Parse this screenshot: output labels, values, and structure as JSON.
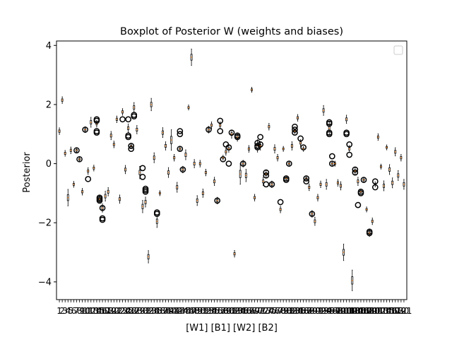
{
  "chart_data": {
    "type": "box",
    "title": "Boxplot of Posterior W (weights and biases)",
    "xlabel": "[W1] [B1] [W2] [B2]",
    "ylabel": "Posterior",
    "ylim": [
      -4.6,
      4.15
    ],
    "yticks": [
      -4,
      -2,
      0,
      2,
      4
    ],
    "x_tick_labels": "1 through 121 (one tick per box; labels overlap)",
    "legend": {
      "placement": "top-right",
      "entries": []
    },
    "grid": false,
    "box_count": 121,
    "colors": {
      "box": "#000000",
      "median": "#ff7f0e",
      "flier": "#000000",
      "background": "#ffffff"
    },
    "boxes": [
      {
        "i": 1,
        "median": 1.1,
        "spread": 0.08
      },
      {
        "i": 2,
        "median": 2.15,
        "spread": 0.08
      },
      {
        "i": 3,
        "median": 0.35,
        "spread": 0.07
      },
      {
        "i": 4,
        "median": -1.15,
        "spread": 0.2
      },
      {
        "i": 5,
        "median": 0.45,
        "spread": 0.08
      },
      {
        "i": 6,
        "median": -0.7,
        "spread": 0.07
      },
      {
        "i": 7,
        "median": 0.45,
        "spread": 0.06,
        "outliers": [
          0.45
        ]
      },
      {
        "i": 8,
        "median": 0.15,
        "spread": 0.06,
        "outliers": [
          0.15
        ]
      },
      {
        "i": 9,
        "median": -0.95,
        "spread": 0.08
      },
      {
        "i": 10,
        "median": 1.15,
        "spread": 0.07,
        "outliers": [
          1.15
        ]
      },
      {
        "i": 11,
        "median": -0.25,
        "spread": 0.08,
        "outliers": [
          -0.52
        ]
      },
      {
        "i": 12,
        "median": 1.4,
        "spread": 0.12
      },
      {
        "i": 13,
        "median": -0.15,
        "spread": 0.07
      },
      {
        "i": 14,
        "median": 1.35,
        "spread": 0.08,
        "outliers": [
          1.5,
          1.45,
          1.1,
          1.05
        ]
      },
      {
        "i": 15,
        "median": -1.2,
        "spread": 0.08,
        "outliers": [
          -1.15,
          -1.2,
          -1.25
        ]
      },
      {
        "i": 16,
        "median": -1.5,
        "spread": 0.1,
        "outliers": [
          -1.85,
          -1.9,
          -1.5
        ]
      },
      {
        "i": 17,
        "median": -1.1,
        "spread": 0.12
      },
      {
        "i": 18,
        "median": -0.95,
        "spread": 0.1
      },
      {
        "i": 19,
        "median": 0.95,
        "spread": 0.1
      },
      {
        "i": 20,
        "median": 0.65,
        "spread": 0.08
      },
      {
        "i": 21,
        "median": 1.5,
        "spread": 0.08
      },
      {
        "i": 22,
        "median": -1.2,
        "spread": 0.1
      },
      {
        "i": 23,
        "median": 1.75,
        "spread": 0.08,
        "outliers": [
          1.5
        ]
      },
      {
        "i": 24,
        "median": -0.2,
        "spread": 0.1
      },
      {
        "i": 25,
        "median": 1.2,
        "spread": 0.1,
        "outliers": [
          1.5,
          0.95,
          0.9
        ]
      },
      {
        "i": 26,
        "median": 0.6,
        "spread": 0.06,
        "outliers": [
          0.6,
          0.5
        ]
      },
      {
        "i": 27,
        "median": 1.9,
        "spread": 0.12,
        "outliers": [
          1.6,
          1.65
        ]
      },
      {
        "i": 28,
        "median": 1.15,
        "spread": 0.1
      },
      {
        "i": 29,
        "median": -0.3,
        "spread": 0.15
      },
      {
        "i": 30,
        "median": -1.45,
        "spread": 0.15,
        "outliers": [
          -0.15,
          -0.45
        ]
      },
      {
        "i": 31,
        "median": -1.3,
        "spread": 0.12,
        "outliers": [
          -0.85,
          -0.9,
          -0.95
        ]
      },
      {
        "i": 32,
        "median": -3.15,
        "spread": 0.15
      },
      {
        "i": 33,
        "median": 2.0,
        "spread": 0.15
      },
      {
        "i": 34,
        "median": 0.2,
        "spread": 0.12
      },
      {
        "i": 35,
        "median": -1.95,
        "spread": 0.15,
        "outliers": [
          -1.65,
          -1.7
        ]
      },
      {
        "i": 36,
        "median": -1.0,
        "spread": 0.06
      },
      {
        "i": 37,
        "median": 1.05,
        "spread": 0.12
      },
      {
        "i": 38,
        "median": 0.6,
        "spread": 0.1
      },
      {
        "i": 39,
        "median": -0.3,
        "spread": 0.12
      },
      {
        "i": 40,
        "median": 0.8,
        "spread": 0.25
      },
      {
        "i": 41,
        "median": 0.2,
        "spread": 0.08
      },
      {
        "i": 42,
        "median": -0.8,
        "spread": 0.12
      },
      {
        "i": 43,
        "median": 0.5,
        "spread": 0.06,
        "outliers": [
          1.1,
          1.0,
          0.5
        ]
      },
      {
        "i": 44,
        "median": -0.2,
        "spread": 0.08,
        "outliers": [
          -0.2
        ]
      },
      {
        "i": 45,
        "median": 0.3,
        "spread": 0.12
      },
      {
        "i": 46,
        "median": 1.9,
        "spread": 0.06
      },
      {
        "i": 47,
        "median": 3.6,
        "spread": 0.2
      },
      {
        "i": 48,
        "median": 0.0,
        "spread": 0.1
      },
      {
        "i": 49,
        "median": -1.25,
        "spread": 0.12
      },
      {
        "i": 50,
        "median": 0.0,
        "spread": 0.08
      },
      {
        "i": 51,
        "median": -1.0,
        "spread": 0.1
      },
      {
        "i": 52,
        "median": -0.3,
        "spread": 0.08
      },
      {
        "i": 53,
        "median": 1.15,
        "spread": 0.08,
        "outliers": [
          1.15
        ]
      },
      {
        "i": 54,
        "median": 1.3,
        "spread": 0.08
      },
      {
        "i": 55,
        "median": -0.6,
        "spread": 0.1
      },
      {
        "i": 56,
        "median": -1.25,
        "spread": 0.08,
        "outliers": [
          -1.25
        ]
      },
      {
        "i": 57,
        "median": 1.3,
        "spread": 0.08,
        "outliers": [
          1.45,
          1.1
        ]
      },
      {
        "i": 58,
        "median": 0.2,
        "spread": 0.06,
        "outliers": [
          0.15
        ]
      },
      {
        "i": 59,
        "median": 0.4,
        "spread": 0.08,
        "outliers": [
          0.65
        ]
      },
      {
        "i": 60,
        "median": 0.5,
        "spread": 0.08,
        "outliers": [
          0.55,
          0.0
        ]
      },
      {
        "i": 61,
        "median": 1.0,
        "spread": 0.1,
        "outliers": [
          1.05
        ]
      },
      {
        "i": 62,
        "median": -3.05,
        "spread": 0.08
      },
      {
        "i": 63,
        "median": 0.9,
        "spread": 0.1,
        "outliers": [
          0.95,
          0.9
        ]
      },
      {
        "i": 64,
        "median": -0.35,
        "spread": 0.25
      },
      {
        "i": 65,
        "median": 0.0,
        "spread": 0.08,
        "outliers": [
          0.0
        ]
      },
      {
        "i": 66,
        "median": -0.4,
        "spread": 0.15
      },
      {
        "i": 67,
        "median": 0.5,
        "spread": 0.08
      },
      {
        "i": 68,
        "median": 2.5,
        "spread": 0.06
      },
      {
        "i": 69,
        "median": -1.15,
        "spread": 0.08
      },
      {
        "i": 70,
        "median": 0.6,
        "spread": 0.15,
        "outliers": [
          0.7,
          0.6,
          0.55
        ]
      },
      {
        "i": 71,
        "median": 0.6,
        "spread": 0.1,
        "outliers": [
          0.9,
          0.65
        ]
      },
      {
        "i": 72,
        "median": -0.6,
        "spread": 0.1
      },
      {
        "i": 73,
        "median": -0.35,
        "spread": 0.08,
        "outliers": [
          -0.3,
          -0.4,
          -0.7
        ]
      },
      {
        "i": 74,
        "median": 1.25,
        "spread": 0.08
      },
      {
        "i": 75,
        "median": -0.7,
        "spread": 0.08,
        "outliers": [
          -0.7
        ]
      },
      {
        "i": 76,
        "median": 0.5,
        "spread": 0.1
      },
      {
        "i": 77,
        "median": 0.2,
        "spread": 0.08
      },
      {
        "i": 78,
        "median": -1.55,
        "spread": 0.08,
        "outliers": [
          -1.3
        ]
      },
      {
        "i": 79,
        "median": 0.5,
        "spread": 0.06
      },
      {
        "i": 80,
        "median": -0.5,
        "spread": 0.06,
        "outliers": [
          -0.55,
          -0.5
        ]
      },
      {
        "i": 81,
        "median": 0.0,
        "spread": 0.06,
        "outliers": [
          0.0
        ]
      },
      {
        "i": 82,
        "median": 0.6,
        "spread": 0.1
      },
      {
        "i": 83,
        "median": 1.1,
        "spread": 0.06,
        "outliers": [
          1.25,
          1.15,
          1.05
        ]
      },
      {
        "i": 84,
        "median": 1.55,
        "spread": 0.08
      },
      {
        "i": 85,
        "median": 0.7,
        "spread": 0.08,
        "outliers": [
          0.85
        ]
      },
      {
        "i": 86,
        "median": 0.5,
        "spread": 0.06,
        "outliers": [
          0.55
        ]
      },
      {
        "i": 87,
        "median": -0.5,
        "spread": 0.06,
        "outliers": [
          -0.5,
          -0.6
        ]
      },
      {
        "i": 88,
        "median": -0.8,
        "spread": 0.08
      },
      {
        "i": 89,
        "median": -1.7,
        "spread": 0.08,
        "outliers": [
          -1.7
        ]
      },
      {
        "i": 90,
        "median": -1.95,
        "spread": 0.1
      },
      {
        "i": 91,
        "median": -1.15,
        "spread": 0.08
      },
      {
        "i": 92,
        "median": -0.7,
        "spread": 0.08
      },
      {
        "i": 93,
        "median": 1.8,
        "spread": 0.12
      },
      {
        "i": 94,
        "median": -0.7,
        "spread": 0.12
      },
      {
        "i": 95,
        "median": 1.2,
        "spread": 0.15,
        "outliers": [
          1.4,
          1.35,
          1.05,
          1.0
        ]
      },
      {
        "i": 96,
        "median": 0.0,
        "spread": 0.06,
        "outliers": [
          0.25,
          0.0
        ]
      },
      {
        "i": 97,
        "median": 0.0,
        "spread": 0.06
      },
      {
        "i": 98,
        "median": -0.65,
        "spread": 0.08
      },
      {
        "i": 99,
        "median": -0.75,
        "spread": 0.1
      },
      {
        "i": 100,
        "median": -3.0,
        "spread": 0.2
      },
      {
        "i": 101,
        "median": 1.5,
        "spread": 0.1,
        "outliers": [
          1.05,
          1.0
        ]
      },
      {
        "i": 102,
        "median": 0.5,
        "spread": 0.08,
        "outliers": [
          0.65,
          0.3
        ]
      },
      {
        "i": 103,
        "median": -3.95,
        "spread": 0.25
      },
      {
        "i": 104,
        "median": -0.25,
        "spread": 0.08,
        "outliers": [
          -0.2,
          -0.3
        ]
      },
      {
        "i": 105,
        "median": -0.6,
        "spread": 0.1,
        "outliers": [
          -1.4
        ]
      },
      {
        "i": 106,
        "median": -0.95,
        "spread": 0.06,
        "outliers": [
          -0.95,
          -1.0
        ]
      },
      {
        "i": 107,
        "median": -0.55,
        "spread": 0.06,
        "outliers": [
          -0.55
        ]
      },
      {
        "i": 108,
        "median": -1.55,
        "spread": 0.06
      },
      {
        "i": 109,
        "median": -2.35,
        "spread": 0.08,
        "outliers": [
          -2.3,
          -2.35
        ]
      },
      {
        "i": 110,
        "median": -1.95,
        "spread": 0.08
      },
      {
        "i": 111,
        "median": -0.7,
        "spread": 0.06,
        "outliers": [
          -0.6,
          -0.8
        ]
      },
      {
        "i": 112,
        "median": 0.9,
        "spread": 0.08
      },
      {
        "i": 113,
        "median": -0.1,
        "spread": 0.06
      },
      {
        "i": 114,
        "median": -0.75,
        "spread": 0.12
      },
      {
        "i": 115,
        "median": 0.55,
        "spread": 0.06
      },
      {
        "i": 116,
        "median": -0.2,
        "spread": 0.12
      },
      {
        "i": 117,
        "median": -0.65,
        "spread": 0.12
      },
      {
        "i": 118,
        "median": 0.4,
        "spread": 0.1
      },
      {
        "i": 119,
        "median": -0.4,
        "spread": 0.12
      },
      {
        "i": 120,
        "median": 0.2,
        "spread": 0.08
      },
      {
        "i": 121,
        "median": -0.7,
        "spread": 0.12
      }
    ]
  }
}
